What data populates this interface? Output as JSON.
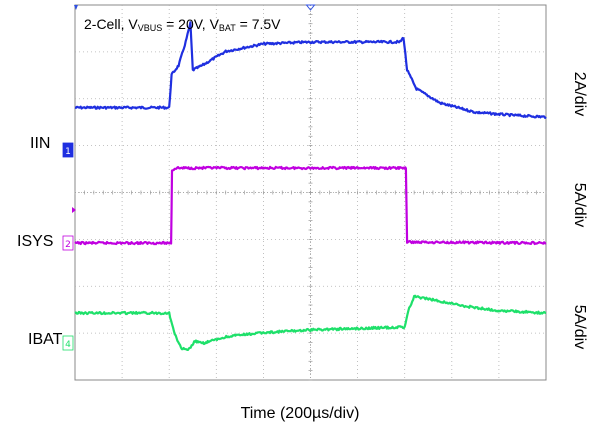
{
  "chart_data": {
    "type": "line",
    "title_parts": {
      "prefix": "2-Cell, V",
      "sub1": "VBUS",
      "mid": " = 20V, V",
      "sub2": "BAT",
      "suffix": " = 7.5V"
    },
    "xlabel": "Time (200µs/div)",
    "x_unit": "µs",
    "xlim": [
      0,
      2000
    ],
    "grid": true,
    "channels": [
      {
        "name": "IIN",
        "scale": "2A/div",
        "color": "#1f2fe0",
        "marker": "1",
        "samples": [
          [
            0,
            0.1
          ],
          [
            400,
            0.1
          ],
          [
            410,
            0.45
          ],
          [
            440,
            0.55
          ],
          [
            470,
            0.8
          ],
          [
            490,
            1.0
          ],
          [
            500,
            0.5
          ],
          [
            540,
            0.55
          ],
          [
            640,
            0.7
          ],
          [
            800,
            0.78
          ],
          [
            1000,
            0.8
          ],
          [
            1200,
            0.8
          ],
          [
            1380,
            0.8
          ],
          [
            1395,
            0.85
          ],
          [
            1410,
            0.5
          ],
          [
            1450,
            0.3
          ],
          [
            1550,
            0.15
          ],
          [
            1700,
            0.05
          ],
          [
            1850,
            0.02
          ],
          [
            2000,
            0.0
          ]
        ]
      },
      {
        "name": "ISYS",
        "scale": "5A/div",
        "color": "#c000e0",
        "marker": "2",
        "samples": [
          [
            0,
            0
          ],
          [
            408,
            0
          ],
          [
            412,
            1.55
          ],
          [
            430,
            1.6
          ],
          [
            1000,
            1.6
          ],
          [
            1400,
            1.6
          ],
          [
            1405,
            1.6
          ],
          [
            1410,
            0.02
          ],
          [
            2000,
            0
          ]
        ]
      },
      {
        "name": "IBAT",
        "scale": "5A/div",
        "color": "#1ee06a",
        "marker": "4",
        "samples": [
          [
            0,
            0
          ],
          [
            400,
            0
          ],
          [
            420,
            -0.4
          ],
          [
            450,
            -0.75
          ],
          [
            480,
            -0.8
          ],
          [
            510,
            -0.6
          ],
          [
            540,
            -0.65
          ],
          [
            650,
            -0.5
          ],
          [
            800,
            -0.42
          ],
          [
            1000,
            -0.36
          ],
          [
            1200,
            -0.33
          ],
          [
            1400,
            -0.3
          ],
          [
            1415,
            0.05
          ],
          [
            1440,
            0.35
          ],
          [
            1500,
            0.3
          ],
          [
            1650,
            0.15
          ],
          [
            1800,
            0.05
          ],
          [
            2000,
            0
          ]
        ]
      }
    ]
  }
}
